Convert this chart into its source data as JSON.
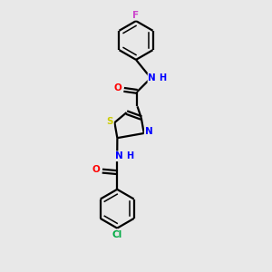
{
  "background_color": "#e8e8e8",
  "bond_color": "#000000",
  "atom_colors": {
    "F": "#cc44cc",
    "N": "#0000ff",
    "O": "#ff0000",
    "S": "#cccc00",
    "Cl": "#00aa44",
    "H": "#0000ff"
  },
  "figsize": [
    3.0,
    3.0
  ],
  "dpi": 100,
  "xlim": [
    0,
    10
  ],
  "ylim": [
    0,
    10
  ]
}
